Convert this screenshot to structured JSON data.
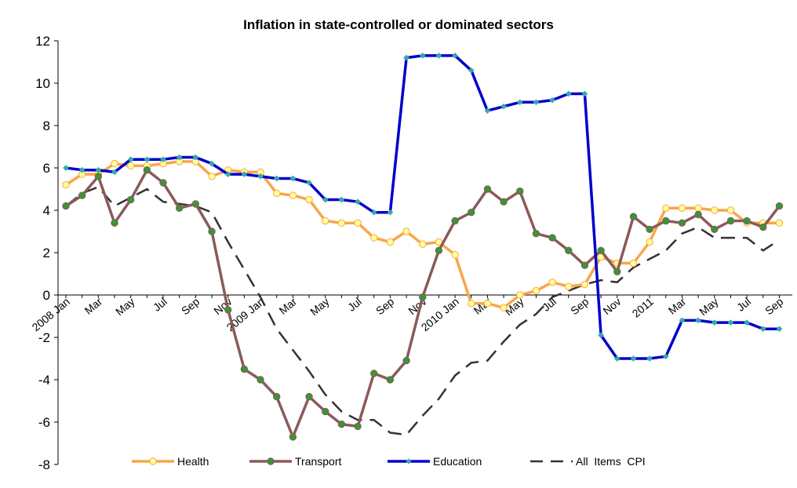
{
  "chart_data": {
    "type": "line",
    "title": "Inflation in state-controlled or dominated sectors",
    "xlabel": "",
    "ylabel": "",
    "ylim": [
      -8,
      12
    ],
    "yticks": [
      12,
      10,
      8,
      6,
      4,
      2,
      0,
      -2,
      -4,
      -6,
      -8
    ],
    "x_tick_labels": [
      {
        "index": 0,
        "label": "2008 Jan"
      },
      {
        "index": 2,
        "label": "Mar"
      },
      {
        "index": 4,
        "label": "May"
      },
      {
        "index": 6,
        "label": "Jul"
      },
      {
        "index": 8,
        "label": "Sep"
      },
      {
        "index": 10,
        "label": "Nov"
      },
      {
        "index": 12,
        "label": "2009 Jan"
      },
      {
        "index": 14,
        "label": "Mar"
      },
      {
        "index": 16,
        "label": "May"
      },
      {
        "index": 18,
        "label": "Jul"
      },
      {
        "index": 20,
        "label": "Sep"
      },
      {
        "index": 22,
        "label": "Nov"
      },
      {
        "index": 24,
        "label": "2010 Jan"
      },
      {
        "index": 26,
        "label": "Mar"
      },
      {
        "index": 28,
        "label": "May"
      },
      {
        "index": 30,
        "label": "Jul"
      },
      {
        "index": 32,
        "label": "Sep"
      },
      {
        "index": 34,
        "label": "Nov"
      },
      {
        "index": 36,
        "label": "2011"
      },
      {
        "index": 38,
        "label": "Mar"
      },
      {
        "index": 40,
        "label": "May"
      },
      {
        "index": 42,
        "label": "Jul"
      },
      {
        "index": 44,
        "label": "Sep"
      }
    ],
    "series": [
      {
        "name": "Health",
        "color": "#f9a64a",
        "marker_fill": "#ffff99",
        "marker": "circle",
        "values": [
          5.2,
          5.7,
          5.7,
          6.2,
          6.1,
          6.1,
          6.2,
          6.3,
          6.3,
          5.6,
          5.9,
          5.8,
          5.8,
          4.8,
          4.7,
          4.5,
          3.5,
          3.4,
          3.4,
          2.7,
          2.5,
          3.0,
          2.4,
          2.5,
          1.9,
          -0.4,
          -0.4,
          -0.6,
          0.0,
          0.2,
          0.6,
          0.4,
          0.5,
          1.8,
          1.5,
          1.5,
          2.5,
          4.1,
          4.1,
          4.1,
          4.0,
          4.0,
          3.4,
          3.4,
          3.4
        ]
      },
      {
        "name": "Transport",
        "color": "#8b5a5a",
        "marker_fill": "#339933",
        "marker": "circle",
        "values": [
          4.2,
          4.7,
          5.6,
          3.4,
          4.5,
          5.9,
          5.3,
          4.1,
          4.3,
          3.0,
          -0.7,
          -3.5,
          -4.0,
          -4.8,
          -6.7,
          -4.8,
          -5.5,
          -6.1,
          -6.2,
          -3.7,
          -4.0,
          -3.1,
          -0.1,
          2.1,
          3.5,
          3.9,
          5.0,
          4.4,
          4.9,
          2.9,
          2.7,
          2.1,
          1.4,
          2.1,
          1.1,
          3.7,
          3.1,
          3.5,
          3.4,
          3.8,
          3.1,
          3.5,
          3.5,
          3.2,
          4.2
        ]
      },
      {
        "name": "Education",
        "color": "#0000cc",
        "marker_fill": "#33aaaa",
        "marker": "diamond",
        "values": [
          6.0,
          5.9,
          5.9,
          5.8,
          6.4,
          6.4,
          6.4,
          6.5,
          6.5,
          6.2,
          5.7,
          5.7,
          5.6,
          5.5,
          5.5,
          5.3,
          4.5,
          4.5,
          4.4,
          3.9,
          3.9,
          11.2,
          11.3,
          11.3,
          11.3,
          10.6,
          8.7,
          8.9,
          9.1,
          9.1,
          9.2,
          9.5,
          9.5,
          -1.9,
          -3.0,
          -3.0,
          -3.0,
          -2.9,
          -1.2,
          -1.2,
          -1.3,
          -1.3,
          -1.3,
          -1.6,
          -1.6
        ]
      },
      {
        "name": "All  Items  CPI",
        "color": "#333333",
        "marker": "none",
        "dashed": true,
        "values": [
          4.2,
          4.8,
          5.1,
          4.2,
          4.6,
          5.0,
          4.4,
          4.3,
          4.2,
          3.9,
          2.5,
          1.2,
          -0.1,
          -1.6,
          -2.6,
          -3.6,
          -4.7,
          -5.5,
          -5.9,
          -5.9,
          -6.5,
          -6.6,
          -5.7,
          -4.9,
          -3.8,
          -3.2,
          -3.1,
          -2.2,
          -1.4,
          -0.9,
          -0.1,
          0.2,
          0.5,
          0.7,
          0.6,
          1.3,
          1.7,
          2.1,
          2.9,
          3.2,
          2.7,
          2.7,
          2.7,
          2.1,
          2.6
        ]
      }
    ],
    "legend_position": "bottom"
  }
}
